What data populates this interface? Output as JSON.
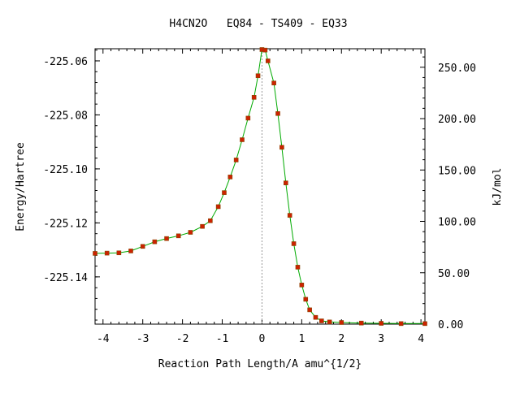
{
  "chart_data": {
    "type": "line",
    "title": "H4CN2O   EQ84 - TS409 - EQ33",
    "xlabel": "Reaction Path Length/A amu^{1/2}",
    "ylabel_left": "Energy/Hartree",
    "ylabel_right": "kJ/mol",
    "xlim": [
      -4.2,
      4.1
    ],
    "ylim_left": [
      -225.1575,
      -225.0555
    ],
    "ylim_right": [
      0.0,
      268.0
    ],
    "x_ticks": [
      -4,
      -3,
      -2,
      -1,
      0,
      1,
      2,
      3,
      4
    ],
    "x_tick_labels": [
      "-4",
      "-3",
      "-2",
      "-1",
      "0",
      "1",
      "2",
      "3",
      "4"
    ],
    "y_left_ticks": [
      -225.06,
      -225.08,
      -225.1,
      -225.12,
      -225.14
    ],
    "y_left_tick_labels": [
      "-225.06",
      "-225.08",
      "-225.10",
      "-225.12",
      "-225.14"
    ],
    "y_right_ticks": [
      250,
      200,
      150,
      100,
      50,
      0
    ],
    "y_right_tick_labels": [
      "250.00",
      "200.00",
      "150.00",
      "100.00",
      "50.00",
      "0.00"
    ],
    "ts_x": 0.0,
    "colors": {
      "curve": "#00aa00",
      "markers": "#cc2200",
      "marker_edge": "#884400",
      "ts_line": "#999999"
    },
    "series": [
      {
        "values": [
          [
            -4.2,
            -225.1313
          ],
          [
            -3.9,
            -225.1312
          ],
          [
            -3.6,
            -225.1311
          ],
          [
            -3.3,
            -225.1304
          ],
          [
            -3.0,
            -225.1287
          ],
          [
            -2.7,
            -225.127
          ],
          [
            -2.4,
            -225.1258
          ],
          [
            -2.1,
            -225.1248
          ],
          [
            -1.8,
            -225.1235
          ],
          [
            -1.5,
            -225.1213
          ],
          [
            -1.3,
            -225.1192
          ],
          [
            -1.1,
            -225.114
          ],
          [
            -0.95,
            -225.1088
          ],
          [
            -0.8,
            -225.103
          ],
          [
            -0.65,
            -225.0967
          ],
          [
            -0.5,
            -225.0892
          ],
          [
            -0.35,
            -225.0812
          ],
          [
            -0.2,
            -225.0735
          ],
          [
            -0.1,
            -225.0655
          ],
          [
            0.0,
            -225.0558
          ],
          [
            0.08,
            -225.056
          ],
          [
            0.15,
            -225.06
          ],
          [
            0.3,
            -225.0682
          ],
          [
            0.4,
            -225.0795
          ],
          [
            0.5,
            -225.092
          ],
          [
            0.6,
            -225.1052
          ],
          [
            0.7,
            -225.1172
          ],
          [
            0.8,
            -225.1277
          ],
          [
            0.9,
            -225.1364
          ],
          [
            1.0,
            -225.143
          ],
          [
            1.1,
            -225.1483
          ],
          [
            1.2,
            -225.1522
          ],
          [
            1.35,
            -225.155
          ],
          [
            1.5,
            -225.1563
          ],
          [
            1.7,
            -225.1567
          ],
          [
            2.0,
            -225.1569
          ],
          [
            2.5,
            -225.1571
          ],
          [
            3.0,
            -225.1572
          ],
          [
            3.5,
            -225.1573
          ],
          [
            4.1,
            -225.1573
          ]
        ]
      }
    ]
  }
}
